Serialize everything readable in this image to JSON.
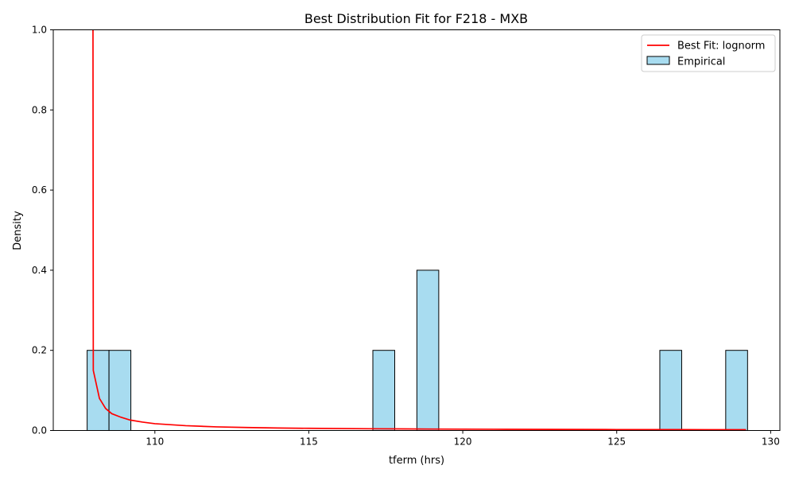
{
  "chart_data": {
    "type": "bar",
    "title": "Best Distribution Fit for F218 - MXB",
    "xlabel": "tferm (hrs)",
    "ylabel": "Density",
    "xlim": [
      106.7,
      130.3
    ],
    "ylim": [
      0,
      1.0
    ],
    "xticks": [
      110,
      115,
      120,
      125,
      130
    ],
    "yticks": [
      0.0,
      0.2,
      0.4,
      0.6,
      0.8,
      1.0
    ],
    "xtick_labels": [
      "110",
      "115",
      "120",
      "125",
      "130"
    ],
    "ytick_labels": [
      "0.0",
      "0.2",
      "0.4",
      "0.6",
      "0.8",
      "1.0"
    ],
    "histogram": {
      "name": "Empirical",
      "bin_width": 0.71,
      "color": "#a8dcf0",
      "edge_color": "#000000",
      "bins": [
        {
          "start": 107.8,
          "density": 0.2
        },
        {
          "start": 108.51,
          "density": 0.2
        },
        {
          "start": 117.08,
          "density": 0.2
        },
        {
          "start": 118.51,
          "density": 0.4
        },
        {
          "start": 126.4,
          "density": 0.2
        },
        {
          "start": 128.54,
          "density": 0.2
        }
      ]
    },
    "fit_line": {
      "name": "Best Fit: lognorm",
      "color": "#ff0000",
      "points": [
        [
          107.99,
          1.0
        ],
        [
          108.0,
          0.15
        ],
        [
          108.2,
          0.08
        ],
        [
          108.4,
          0.055
        ],
        [
          108.6,
          0.042
        ],
        [
          108.9,
          0.033
        ],
        [
          109.2,
          0.026
        ],
        [
          109.6,
          0.021
        ],
        [
          110.0,
          0.017
        ],
        [
          111.0,
          0.012
        ],
        [
          112.0,
          0.009
        ],
        [
          113.0,
          0.0075
        ],
        [
          114.0,
          0.0062
        ],
        [
          115.0,
          0.0054
        ],
        [
          117.0,
          0.0043
        ],
        [
          119.0,
          0.0036
        ],
        [
          121.0,
          0.0031
        ],
        [
          123.0,
          0.0027
        ],
        [
          125.0,
          0.0024
        ],
        [
          127.0,
          0.0022
        ],
        [
          129.2,
          0.002
        ]
      ]
    },
    "legend": {
      "position": "top-right",
      "entries": [
        "Best Fit: lognorm",
        "Empirical"
      ]
    }
  }
}
